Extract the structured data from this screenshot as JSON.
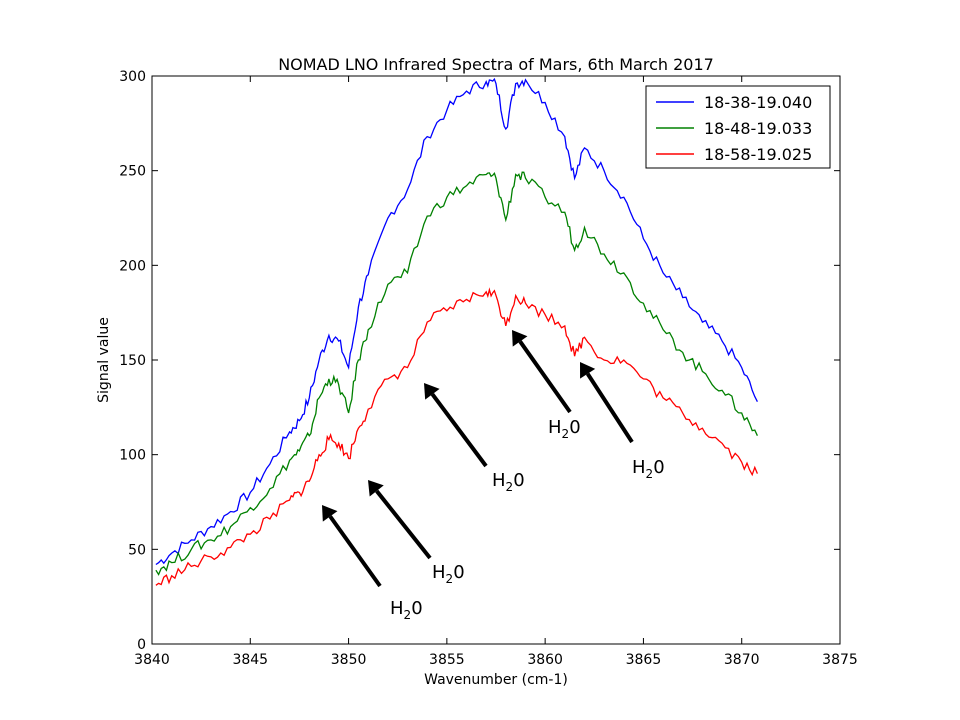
{
  "chart_data": {
    "type": "line",
    "title": "NOMAD LNO Infrared Spectra of Mars, 6th March 2017",
    "xlabel": "Wavenumber (cm-1)",
    "ylabel": "Signal value",
    "xlim": [
      3840,
      3875
    ],
    "ylim": [
      0,
      300
    ],
    "xticks": [
      "3840",
      "3845",
      "3850",
      "3855",
      "3860",
      "3865",
      "3870",
      "3875"
    ],
    "yticks": [
      "0",
      "50",
      "100",
      "150",
      "200",
      "250",
      "300"
    ],
    "grid": false,
    "legend_position": "top-right",
    "series": [
      {
        "name": "18-38-19.040",
        "color": "#0000ff",
        "x": [
          3840.2,
          3841,
          3842,
          3843,
          3844,
          3845,
          3846,
          3847,
          3847.5,
          3848,
          3848.5,
          3849,
          3849.5,
          3850,
          3850.5,
          3851,
          3852,
          3853,
          3854,
          3855,
          3856,
          3857,
          3857.5,
          3858,
          3858.5,
          3859,
          3860,
          3861,
          3861.5,
          3862,
          3863,
          3864,
          3865,
          3866,
          3867,
          3868,
          3869,
          3870,
          3870.8
        ],
        "y": [
          42,
          48,
          55,
          62,
          70,
          80,
          95,
          112,
          118,
          130,
          150,
          163,
          160,
          146,
          178,
          195,
          225,
          240,
          268,
          282,
          292,
          297,
          296,
          272,
          296,
          298,
          286,
          268,
          246,
          262,
          250,
          236,
          214,
          196,
          183,
          170,
          160,
          146,
          128
        ]
      },
      {
        "name": "18-48-19.033",
        "color": "#008000",
        "x": [
          3840.2,
          3841,
          3842,
          3843,
          3844,
          3845,
          3846,
          3847,
          3847.5,
          3848,
          3848.5,
          3849,
          3849.5,
          3850,
          3850.5,
          3851,
          3852,
          3853,
          3854,
          3855,
          3856,
          3857,
          3857.5,
          3858,
          3858.5,
          3859,
          3860,
          3861,
          3861.5,
          3862,
          3863,
          3864,
          3865,
          3866,
          3867,
          3868,
          3869,
          3870,
          3870.8
        ],
        "y": [
          39,
          43,
          50,
          55,
          62,
          72,
          82,
          97,
          102,
          110,
          130,
          140,
          137,
          122,
          150,
          166,
          190,
          196,
          226,
          236,
          242,
          248,
          246,
          224,
          248,
          246,
          236,
          228,
          208,
          220,
          206,
          196,
          180,
          166,
          154,
          144,
          134,
          122,
          110
        ]
      },
      {
        "name": "18-58-19.025",
        "color": "#ff0000",
        "x": [
          3840.2,
          3841,
          3842,
          3843,
          3844,
          3845,
          3846,
          3847,
          3847.5,
          3848,
          3848.5,
          3849,
          3849.5,
          3850,
          3850.5,
          3851,
          3852,
          3853,
          3854,
          3855,
          3856,
          3857,
          3857.5,
          3858,
          3858.5,
          3859,
          3860,
          3861,
          3861.5,
          3862,
          3863,
          3864,
          3865,
          3866,
          3867,
          3868,
          3869,
          3870,
          3870.8
        ],
        "y": [
          31,
          36,
          41,
          46,
          51,
          58,
          66,
          76,
          80,
          86,
          100,
          108,
          106,
          98,
          114,
          124,
          140,
          146,
          170,
          176,
          182,
          186,
          184,
          168,
          184,
          180,
          174,
          168,
          152,
          162,
          150,
          150,
          140,
          130,
          122,
          114,
          106,
          96,
          90
        ]
      }
    ],
    "annotations": [
      {
        "label": "H2O",
        "base": "H",
        "sub": "2",
        "tail": "0"
      },
      {
        "label": "H2O",
        "base": "H",
        "sub": "2",
        "tail": "0"
      },
      {
        "label": "H2O",
        "base": "H",
        "sub": "2",
        "tail": "0"
      },
      {
        "label": "H2O",
        "base": "H",
        "sub": "2",
        "tail": "0"
      },
      {
        "label": "H2O",
        "base": "H",
        "sub": "2",
        "tail": "0"
      }
    ]
  }
}
